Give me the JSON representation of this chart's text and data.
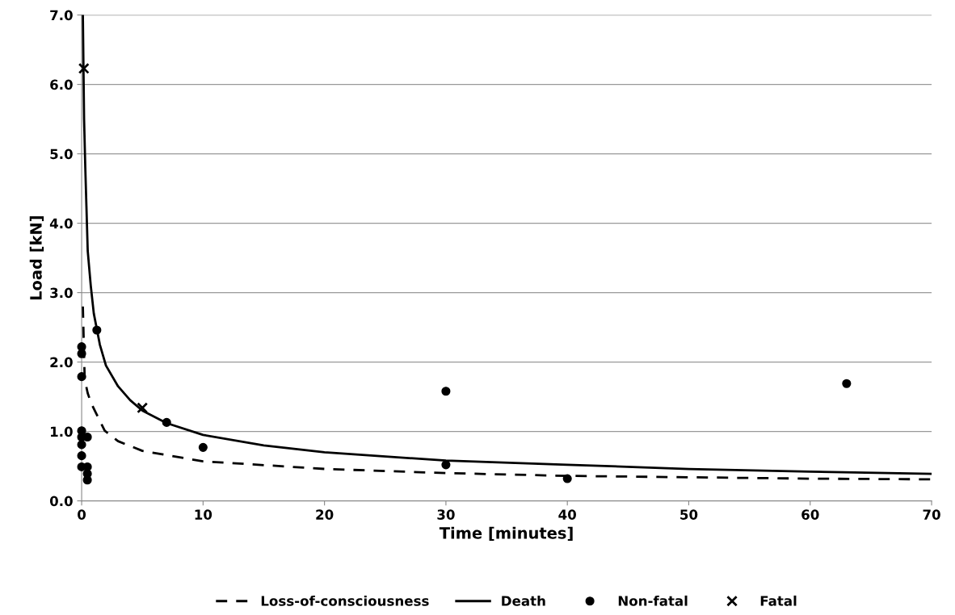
{
  "chart_data": {
    "type": "scatter",
    "xlabel": "Time [minutes]",
    "ylabel": "Load [kN]",
    "xlim": [
      0,
      70
    ],
    "xticks": [
      0,
      10,
      20,
      30,
      40,
      50,
      60,
      70
    ],
    "ylim": [
      0,
      7
    ],
    "yticks": [
      {
        "value": 0,
        "label": "0.0"
      },
      {
        "value": 1,
        "label": "1.0"
      },
      {
        "value": 2,
        "label": "2.0"
      },
      {
        "value": 3,
        "label": "3.0"
      },
      {
        "value": 4,
        "label": "4.0"
      },
      {
        "value": 5,
        "label": "5.0"
      },
      {
        "value": 6,
        "label": "6.0"
      },
      {
        "value": 7,
        "label": "7.0"
      }
    ],
    "grid": "y",
    "legend": "bottom",
    "series": [
      {
        "name": "Loss-of-consciousness",
        "type": "line",
        "line_style": "dashed",
        "marker": "none",
        "color": "#000000",
        "x": [
          0.1,
          0.25,
          0.5,
          0.8,
          1.9,
          3,
          5,
          10,
          20,
          30,
          40,
          50,
          60,
          70
        ],
        "values": [
          2.8,
          1.75,
          1.55,
          1.4,
          1.01,
          0.86,
          0.72,
          0.57,
          0.46,
          0.4,
          0.36,
          0.34,
          0.32,
          0.31
        ]
      },
      {
        "name": "Death",
        "type": "line",
        "line_style": "solid",
        "marker": "none",
        "color": "#000000",
        "x": [
          0.1,
          0.2,
          0.3,
          0.5,
          0.75,
          1,
          1.5,
          2,
          3,
          4,
          5,
          7,
          10,
          15,
          20,
          30,
          40,
          50,
          60,
          70
        ],
        "values": [
          7.0,
          5.5,
          4.8,
          3.6,
          3.1,
          2.7,
          2.25,
          1.95,
          1.65,
          1.45,
          1.3,
          1.12,
          0.95,
          0.8,
          0.7,
          0.58,
          0.52,
          0.46,
          0.42,
          0.39
        ]
      },
      {
        "name": "Non-fatal",
        "marker": "circle",
        "color": "#000000",
        "x": [
          1.25,
          0,
          0,
          0,
          0,
          0,
          0.47,
          0,
          0,
          0,
          0.47,
          0.47,
          0.47,
          7,
          10,
          30,
          30,
          40,
          63
        ],
        "values": [
          2.46,
          2.22,
          2.12,
          1.79,
          1.01,
          0.92,
          0.92,
          0.81,
          0.65,
          0.49,
          0.49,
          0.39,
          0.3,
          1.13,
          0.77,
          1.58,
          0.52,
          0.32,
          1.69
        ]
      },
      {
        "name": "Fatal",
        "marker": "cross",
        "color": "#000000",
        "x": [
          0.18,
          5
        ],
        "values": [
          6.23,
          1.34
        ]
      }
    ]
  }
}
